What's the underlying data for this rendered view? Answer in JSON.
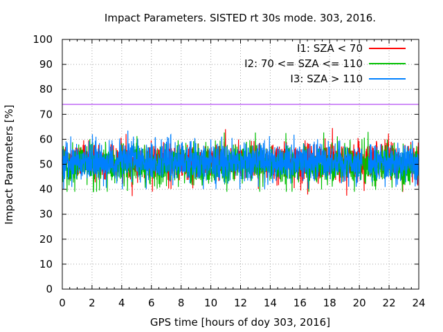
{
  "chart_data": {
    "type": "line",
    "title": "Impact Parameters. SISTED rt 30s mode. 303, 2016.",
    "xlabel": "GPS time [hours of doy 303, 2016]",
    "ylabel": "Impact Parameters [%]",
    "xlim": [
      0,
      24
    ],
    "ylim": [
      0,
      100
    ],
    "xticks": [
      0,
      2,
      4,
      6,
      8,
      10,
      12,
      14,
      16,
      18,
      20,
      22,
      24
    ],
    "yticks": [
      0,
      10,
      20,
      30,
      40,
      50,
      60,
      70,
      80,
      90,
      100
    ],
    "grid": true,
    "legend_position": "top-right",
    "reference_line": {
      "y": 74,
      "color": "#a020f0"
    },
    "series": [
      {
        "name": "I1: SZA < 70",
        "color": "#ff0000",
        "mean": 51,
        "min": 37,
        "max": 64.5,
        "gaps": []
      },
      {
        "name": "I2: 70 <= SZA <= 110",
        "color": "#00c000",
        "mean": 50,
        "min": 39,
        "max": 63,
        "gaps": []
      },
      {
        "name": "I3: SZA > 110",
        "color": "#0080ff",
        "mean": 51,
        "min": 40,
        "max": 63.5,
        "gaps": [
          [
            20.2,
            20.6
          ]
        ]
      }
    ]
  }
}
